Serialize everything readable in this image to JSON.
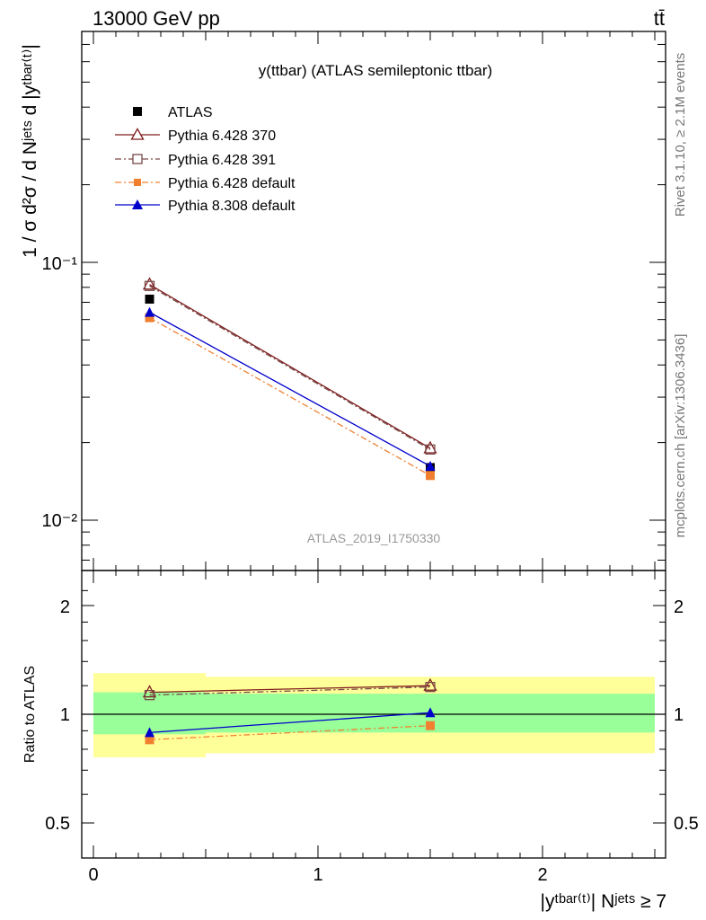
{
  "header": {
    "energy_label": "13000 GeV pp",
    "process_label": "tt̄"
  },
  "side_labels": {
    "rivet": "Rivet 3.1.10, ≥ 2.1M events",
    "source": "mcplots.cern.ch [arXiv:1306.3436]"
  },
  "chart_data": [
    {
      "type": "line",
      "title": "y(ttbar) (ATLAS semileptonic ttbar)",
      "watermark": "ATLAS_2019_I1750330",
      "ylabel": "1 / σ d²σ / d Nʲᵉᵗˢ d |yᵗᵇᵃʳ⁽ᵗ⁾|",
      "yscale": "log",
      "ylim": [
        0.0063,
        0.78
      ],
      "xlim": [
        -0.05,
        2.55
      ],
      "y_ticks": [
        {
          "value": 0.1,
          "label": "10⁻¹"
        },
        {
          "value": 0.01,
          "label": "10⁻²"
        }
      ],
      "legend_position": "top-left",
      "x": [
        0.25,
        1.5
      ],
      "series": [
        {
          "name": "ATLAS",
          "color": "#000000",
          "marker": "square-filled",
          "line": "none",
          "values": [
            0.072,
            0.016
          ]
        },
        {
          "name": "Pythia 6.428 370",
          "color": "#7f1d1d",
          "marker": "triangle-open",
          "line": "solid",
          "values": [
            0.082,
            0.019
          ]
        },
        {
          "name": "Pythia 6.428 391",
          "color": "#7a4a4a",
          "marker": "square-open",
          "line": "dashdot",
          "values": [
            0.081,
            0.0188
          ]
        },
        {
          "name": "Pythia 6.428 default",
          "color": "#f08030",
          "marker": "square-filled",
          "line": "dashdot",
          "values": [
            0.061,
            0.0149
          ]
        },
        {
          "name": "Pythia 8.308 default",
          "color": "#0000cc",
          "marker": "triangle-filled",
          "line": "solid",
          "values": [
            0.064,
            0.0162
          ]
        }
      ]
    },
    {
      "type": "line",
      "ylabel": "Ratio to ATLAS",
      "xlabel": "|yᵗᵇᵃʳ⁽ᵗ⁾| Nʲᵉᵗˢ ≥ 7",
      "yscale": "log",
      "ylim": [
        0.43,
        2.45
      ],
      "xlim": [
        -0.05,
        2.55
      ],
      "y_ticks": [
        {
          "value": 0.5,
          "label": "0.5"
        },
        {
          "value": 1,
          "label": "1"
        },
        {
          "value": 2,
          "label": "2"
        }
      ],
      "x_ticks": [
        {
          "value": 0,
          "label": "0"
        },
        {
          "value": 1,
          "label": "1"
        },
        {
          "value": 2,
          "label": "2"
        }
      ],
      "bands": [
        {
          "kind": "total",
          "color": "#ffff99",
          "bins": [
            {
              "x0": 0,
              "x1": 0.5,
              "lo": 0.76,
              "hi": 1.3
            },
            {
              "x0": 0.5,
              "x1": 2.5,
              "lo": 0.78,
              "hi": 1.27
            }
          ]
        },
        {
          "kind": "stat",
          "color": "#99ff99",
          "bins": [
            {
              "x0": 0,
              "x1": 0.5,
              "lo": 0.88,
              "hi": 1.15
            },
            {
              "x0": 0.5,
              "x1": 2.5,
              "lo": 0.89,
              "hi": 1.14
            }
          ]
        }
      ],
      "reference_line": 1,
      "x": [
        0.25,
        1.5
      ],
      "series": [
        {
          "name": "Pythia 6.428 370",
          "color": "#7f1d1d",
          "marker": "triangle-open",
          "line": "solid",
          "values": [
            1.15,
            1.2
          ]
        },
        {
          "name": "Pythia 6.428 391",
          "color": "#7a4a4a",
          "marker": "square-open",
          "line": "dashdot",
          "values": [
            1.13,
            1.19
          ]
        },
        {
          "name": "Pythia 6.428 default",
          "color": "#f08030",
          "marker": "square-filled",
          "line": "dashdot",
          "values": [
            0.85,
            0.93
          ]
        },
        {
          "name": "Pythia 8.308 default",
          "color": "#0000cc",
          "marker": "triangle-filled",
          "line": "solid",
          "values": [
            0.89,
            1.01
          ]
        }
      ]
    }
  ]
}
